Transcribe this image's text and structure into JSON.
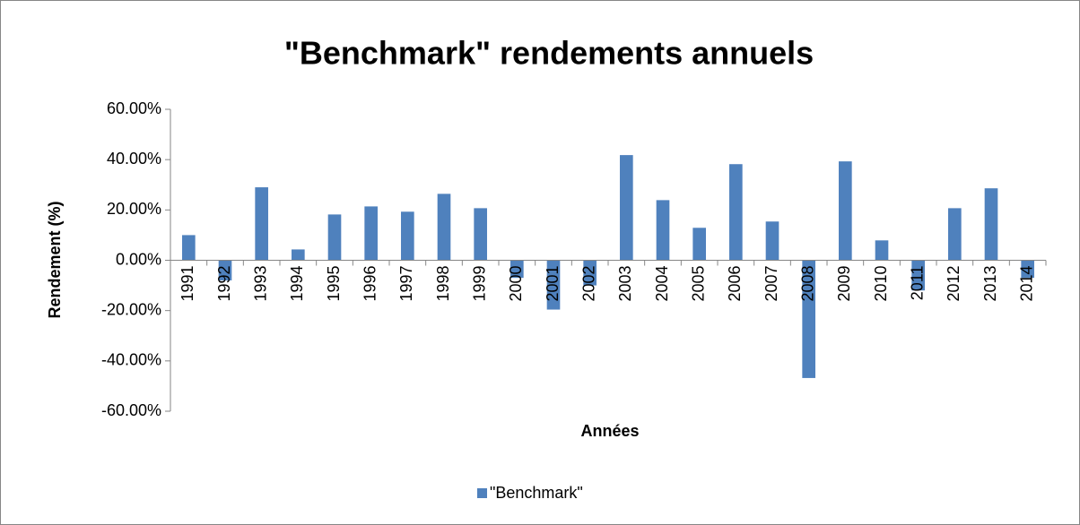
{
  "chart_data": {
    "type": "bar",
    "title": "\"Benchmark\" rendements annuels",
    "x_label": "Années",
    "y_label": "Rendement (%)",
    "categories": [
      "1991",
      "1992",
      "1993",
      "1994",
      "1995",
      "1996",
      "1997",
      "1998",
      "1999",
      "2000",
      "2001",
      "2002",
      "2003",
      "2004",
      "2005",
      "2006",
      "2007",
      "2008",
      "2009",
      "2010",
      "2011",
      "2012",
      "2013",
      "2014"
    ],
    "series": [
      {
        "name": "\"Benchmark\"",
        "color": "#4f81bd",
        "values": [
          10,
          -8,
          29,
          4.3,
          18.2,
          21.4,
          19.3,
          26.4,
          20.7,
          -7,
          -19.6,
          -10,
          41.8,
          23.9,
          12.9,
          38.2,
          15.4,
          -46.8,
          39.3,
          7.9,
          -12,
          20.7,
          28.6,
          -7
        ]
      }
    ],
    "ylim": [
      -60,
      60
    ],
    "yticks": [
      {
        "value": -60,
        "label": "-60.00%"
      },
      {
        "value": -40,
        "label": "-40.00%"
      },
      {
        "value": -20,
        "label": "-20.00%"
      },
      {
        "value": 0,
        "label": "0.00%"
      },
      {
        "value": 20,
        "label": "20.00%"
      },
      {
        "value": 40,
        "label": "40.00%"
      },
      {
        "value": 60,
        "label": "60.00%"
      }
    ],
    "grid": false,
    "legend": "bottom"
  }
}
